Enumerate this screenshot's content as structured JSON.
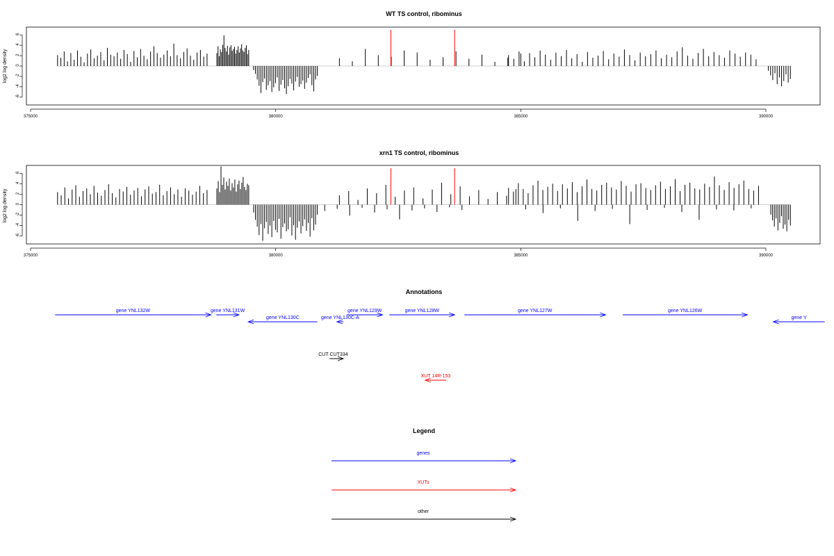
{
  "colors": {
    "gene": "#0000ff",
    "xut": "#ff0000",
    "other": "#000000",
    "axis": "#000000",
    "highlight": "#ff0000"
  },
  "chart_data": [
    {
      "type": "bar",
      "title": "WT TS control, ribominus",
      "ylabel": "log2 log density",
      "xlim": [
        375000,
        391200
      ],
      "ylim": [
        -7.5,
        7.5
      ],
      "xticks": [
        375000,
        380000,
        385000,
        390000
      ],
      "yticks": [
        -6,
        -4,
        -2,
        0,
        2,
        4,
        6
      ],
      "highlight_x": [
        382350,
        383650
      ],
      "series": [
        {
          "region": "plus_early",
          "x_range": [
            375550,
            378600
          ],
          "values": [
            2.1,
            1.6,
            2.8,
            0.9,
            2.5,
            1.2,
            3.0,
            1.8,
            0.7,
            2.4,
            3.2,
            1.5,
            2.0,
            2.7,
            1.1,
            3.5,
            2.2,
            1.9,
            2.6,
            1.4,
            3.1,
            2.3,
            0.8,
            2.9,
            1.7,
            3.3,
            2.0,
            1.3,
            2.8,
            3.8,
            2.5,
            1.6,
            2.2,
            3.0,
            1.9,
            4.3,
            2.1,
            1.5,
            2.7,
            3.4,
            2.0,
            1.2,
            2.6,
            3.1,
            1.8,
            2.4
          ]
        },
        {
          "region": "plus_dense",
          "x_range": [
            378800,
            379450
          ],
          "values": [
            2.5,
            3.8,
            1.9,
            3.2,
            2.7,
            4.1,
            5.9,
            3.5,
            2.8,
            3.9,
            2.2,
            3.6,
            4.0,
            2.9,
            3.3,
            3.7,
            2.4,
            3.1,
            3.8,
            2.6,
            3.4,
            4.2,
            3.0,
            2.7,
            3.5,
            4.0,
            2.3,
            3.1
          ]
        },
        {
          "region": "minus_block",
          "x_range": [
            379550,
            380850
          ],
          "values": [
            -0.8,
            -1.5,
            -2.6,
            -3.8,
            -5.2,
            -3.1,
            -2.4,
            -4.6,
            -3.7,
            -2.9,
            -5.0,
            -4.1,
            -3.3,
            -2.2,
            -4.8,
            -3.6,
            -2.7,
            -4.3,
            -5.4,
            -3.9,
            -2.5,
            -3.4,
            -4.7,
            -3.0,
            -2.1,
            -4.0,
            -3.5,
            -2.8,
            -4.4,
            -3.2,
            -2.3,
            -1.6,
            -3.7,
            -4.9,
            -2.6,
            -1.9
          ]
        },
        {
          "region": "plus_sparse",
          "x_range": [
            381300,
            385000
          ],
          "values": [
            1.5,
            0.9,
            3.3,
            2.1,
            1.8,
            3.0,
            2.6,
            1.2,
            1.7,
            2.8,
            1.4,
            2.2,
            0.8,
            1.6,
            2.4
          ]
        },
        {
          "region": "plus_late",
          "x_range": [
            384750,
            389800
          ],
          "values": [
            2.1,
            1.4,
            2.8,
            0.9,
            2.5,
            1.7,
            3.0,
            2.2,
            1.2,
            2.6,
            1.9,
            3.1,
            1.5,
            2.3,
            0.8,
            2.7,
            1.6,
            2.0,
            2.9,
            1.3,
            2.4,
            1.8,
            3.2,
            2.1,
            1.1,
            2.6,
            1.9,
            2.3,
            3.0,
            1.5,
            2.2,
            1.7,
            2.8,
            3.6,
            2.0,
            1.4,
            2.5,
            3.3,
            1.9,
            2.7,
            2.1,
            1.6,
            3.0,
            2.4,
            1.8,
            2.6,
            2.2,
            1.3
          ]
        },
        {
          "region": "minus_end",
          "x_range": [
            390050,
            390500
          ],
          "values": [
            -0.9,
            -1.8,
            -2.7,
            -1.4,
            -3.5,
            -2.2,
            -3.9,
            -2.9,
            -1.6,
            -3.2,
            -2.5
          ]
        }
      ]
    },
    {
      "type": "bar",
      "title": "xrn1 TS control, ribominus",
      "ylabel": "log2 log density",
      "xlim": [
        375000,
        391200
      ],
      "ylim": [
        -7.5,
        7.5
      ],
      "xticks": [
        375000,
        380000,
        385000,
        390000
      ],
      "yticks": [
        -6,
        -4,
        -2,
        0,
        2,
        4,
        6
      ],
      "highlight_x": [
        382350,
        383650
      ],
      "series": [
        {
          "region": "plus_early",
          "x_range": [
            375550,
            378600
          ],
          "values": [
            2.4,
            1.8,
            3.3,
            1.2,
            2.9,
            3.7,
            1.5,
            2.6,
            3.1,
            2.0,
            3.6,
            2.3,
            1.7,
            2.8,
            3.9,
            2.2,
            1.4,
            3.0,
            2.5,
            3.4,
            1.9,
            2.7,
            3.2,
            1.6,
            2.9,
            3.5,
            2.1,
            2.4,
            3.8,
            1.8,
            2.6,
            3.3,
            2.0,
            2.9,
            1.5,
            3.1,
            2.7,
            1.9,
            2.5,
            3.6,
            2.2,
            2.8
          ]
        },
        {
          "region": "plus_dense",
          "x_range": [
            378800,
            379450
          ],
          "values": [
            3.1,
            4.5,
            2.4,
            7.3,
            3.8,
            5.2,
            2.9,
            4.4,
            3.6,
            5.0,
            2.7,
            4.1,
            3.3,
            4.8,
            2.5,
            3.9,
            4.6,
            3.0,
            4.2,
            5.3,
            3.4,
            2.8,
            4.0,
            3.7
          ]
        },
        {
          "region": "minus_block",
          "x_range": [
            379550,
            380850
          ],
          "values": [
            -1.5,
            -2.9,
            -4.2,
            -5.8,
            -3.7,
            -6.9,
            -4.5,
            -3.3,
            -5.6,
            -4.0,
            -6.2,
            -3.1,
            -4.8,
            -5.3,
            -2.7,
            -6.5,
            -4.3,
            -3.6,
            -5.1,
            -4.7,
            -2.4,
            -5.9,
            -3.9,
            -6.7,
            -4.4,
            -3.2,
            -5.5,
            -4.1,
            -2.8,
            -5.0,
            -3.5,
            -6.1,
            -2.6,
            -4.9,
            -3.8,
            -1.9
          ]
        },
        {
          "region": "plus_sparse",
          "x_range": [
            381300,
            384900
          ],
          "values": [
            1.8,
            2.6,
            0.9,
            3.1,
            2.2,
            3.8,
            1.5,
            2.7,
            3.3,
            1.2,
            2.9,
            4.2,
            2.0,
            3.5,
            1.6,
            2.8,
            1.1,
            2.4,
            1.7,
            3.0
          ]
        },
        {
          "region": "minus_sparse",
          "x_range": [
            381000,
            383800
          ],
          "values": [
            -1.2,
            -0.8,
            -2.1,
            -0.6,
            -1.5,
            -0.9,
            -2.8,
            -1.1,
            -0.7,
            -1.4,
            -0.5,
            -1.0
          ]
        },
        {
          "region": "plus_late",
          "x_range": [
            384750,
            389850
          ],
          "values": [
            3.2,
            2.5,
            4.1,
            3.0,
            2.2,
            3.7,
            4.6,
            2.8,
            3.4,
            4.0,
            2.6,
            3.9,
            3.1,
            4.3,
            2.4,
            3.5,
            4.8,
            3.0,
            2.7,
            3.8,
            4.2,
            3.3,
            2.9,
            4.5,
            3.6,
            2.5,
            3.9,
            4.1,
            3.2,
            2.8,
            3.7,
            4.4,
            3.0,
            3.5,
            4.9,
            2.6,
            3.8,
            4.2,
            3.1,
            2.9,
            4.0,
            3.4,
            5.4,
            3.7,
            2.8,
            4.3,
            3.2,
            3.9,
            4.6,
            3.0,
            2.7,
            3.6
          ]
        },
        {
          "region": "minus_late",
          "x_range": [
            385100,
            389700
          ],
          "values": [
            -0.9,
            -1.6,
            -0.7,
            -3.1,
            -1.2,
            -0.8,
            -3.7,
            -1.0,
            -0.6,
            -1.4,
            -2.9,
            -0.9,
            -1.1,
            -0.7
          ]
        },
        {
          "region": "minus_end",
          "x_range": [
            390100,
            390500
          ],
          "values": [
            -1.9,
            -3.0,
            -4.2,
            -2.6,
            -4.9,
            -3.5,
            -2.2,
            -4.6,
            -3.8,
            -5.1,
            -2.9,
            -4.0
          ]
        }
      ]
    }
  ],
  "annotations": {
    "title": "Annotations",
    "features": [
      {
        "label": "gene YNL132W",
        "type": "gene",
        "strand": "+",
        "start": 375500,
        "end": 378680,
        "row": 0
      },
      {
        "label": "gene YNL131W",
        "type": "gene",
        "strand": "+",
        "start": 378790,
        "end": 379250,
        "row": 0
      },
      {
        "label": "gene YNL130C",
        "type": "gene",
        "strand": "-",
        "start": 379440,
        "end": 380850,
        "row": 1
      },
      {
        "label": "gene YNL130C-A",
        "type": "gene",
        "strand": "-",
        "start": 381250,
        "end": 381380,
        "row": 1
      },
      {
        "label": "gene YNL129W",
        "type": "gene",
        "strand": "+",
        "start": 381450,
        "end": 382180,
        "row": 0
      },
      {
        "label": "gene YNL128W",
        "type": "gene",
        "strand": "+",
        "start": 382320,
        "end": 383650,
        "row": 0
      },
      {
        "label": "gene YNL127W",
        "type": "gene",
        "strand": "+",
        "start": 383850,
        "end": 386730,
        "row": 0
      },
      {
        "label": "gene YNL126W",
        "type": "gene",
        "strand": "+",
        "start": 387080,
        "end": 389620,
        "row": 0
      },
      {
        "label": "gene Y",
        "type": "gene",
        "strand": "-",
        "start": 390150,
        "end": 391200,
        "row": 1
      },
      {
        "label": "CUT CUT334",
        "type": "other",
        "strand": "+",
        "start": 381100,
        "end": 381380,
        "row": 2
      },
      {
        "label": "XUT 14R-153",
        "type": "xut",
        "strand": "-",
        "start": 383050,
        "end": 383480,
        "row": 3
      }
    ]
  },
  "legend": {
    "title": "Legend",
    "items": [
      {
        "label": "genes",
        "type": "gene"
      },
      {
        "label": "XUTs",
        "type": "xut"
      },
      {
        "label": "other",
        "type": "other"
      }
    ]
  }
}
